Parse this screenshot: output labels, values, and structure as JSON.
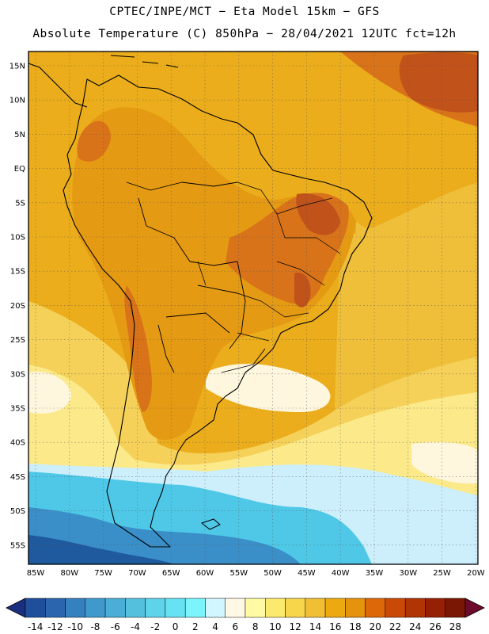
{
  "header": {
    "line1": "CPTEC/INPE/MCT −  Eta Model 15km − GFS",
    "line2": "Absolute Temperature (C) 850hPa − 28/04/2021 12UTC fct=12h"
  },
  "map": {
    "lat_labels": [
      "15N",
      "10N",
      "5N",
      "EQ",
      "5S",
      "10S",
      "15S",
      "20S",
      "25S",
      "30S",
      "35S",
      "40S",
      "45S",
      "50S",
      "55S"
    ],
    "lon_labels": [
      "85W",
      "80W",
      "75W",
      "70W",
      "65W",
      "60W",
      "55W",
      "50W",
      "45W",
      "40W",
      "35W",
      "30W",
      "25W",
      "20W"
    ]
  },
  "colorbar": {
    "labels": [
      "-14",
      "-12",
      "-10",
      "-8",
      "-6",
      "-4",
      "-2",
      "0",
      "2",
      "4",
      "6",
      "8",
      "10",
      "12",
      "14",
      "16",
      "18",
      "20",
      "22",
      "24",
      "26",
      "28"
    ],
    "colors": [
      "#1f4e9b",
      "#2b65ad",
      "#3580bf",
      "#3f99cc",
      "#4aaed6",
      "#55c0de",
      "#5fd3ea",
      "#66e2f2",
      "#7cf4fb",
      "#d2f6ff",
      "#fff8e4",
      "#fffaa3",
      "#fcea6e",
      "#f7d64b",
      "#f1bf33",
      "#ecaa10",
      "#e5920c",
      "#dd680a",
      "#c94a06",
      "#b03404",
      "#962004",
      "#7a1604"
    ],
    "end_low": "#1a2f80",
    "end_high": "#6e0a2c"
  },
  "palette": {
    "deep_blue": "#1f5a9e",
    "blue": "#3a8fc8",
    "cyan": "#4fc8e8",
    "light_cyan": "#cdeffb",
    "pale": "#fff6de",
    "yellow": "#fbe98a",
    "yellow_orange": "#f5d159",
    "orange_light": "#efbf3a",
    "orange": "#ebad1b",
    "orange_dark": "#e59a14",
    "red_orange": "#d8731a",
    "deep_red": "#c0521a"
  }
}
